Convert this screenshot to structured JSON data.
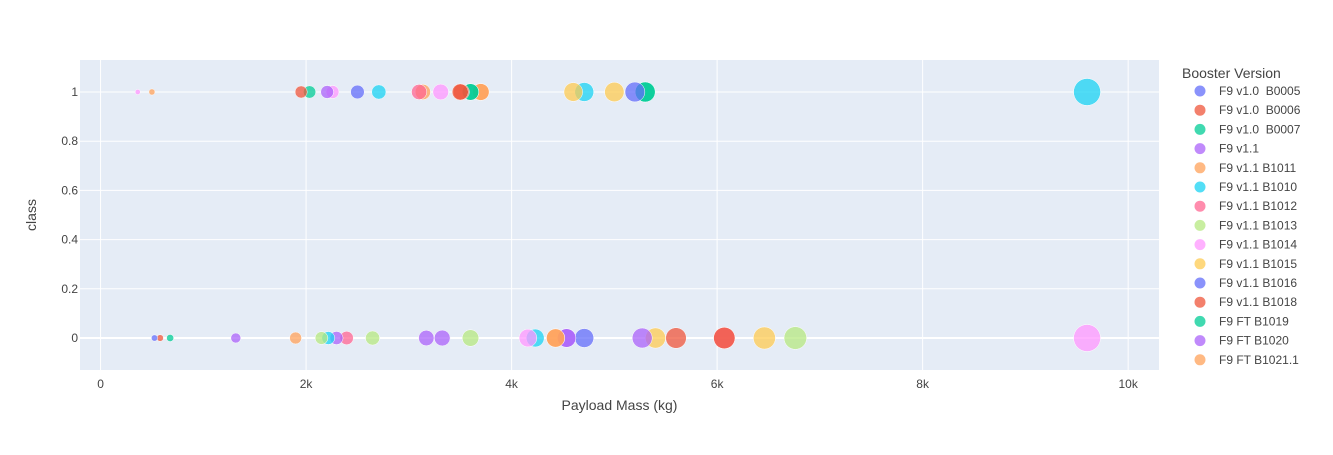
{
  "chart_data": {
    "type": "scatter",
    "title": "",
    "xlabel": "Payload Mass (kg)",
    "ylabel": "class",
    "xlim": [
      -200,
      10300
    ],
    "ylim": [
      -0.13,
      1.13
    ],
    "x_ticks": [
      0,
      2000,
      4000,
      6000,
      8000,
      10000
    ],
    "x_tick_labels": [
      "0",
      "2k",
      "4k",
      "6k",
      "8k",
      "10k"
    ],
    "y_ticks": [
      0,
      0.2,
      0.4,
      0.6,
      0.8,
      1
    ],
    "y_tick_labels": [
      "0",
      "0.2",
      "0.4",
      "0.6",
      "0.8",
      "1"
    ],
    "marker_size_encodes": "Payload Mass (kg)",
    "grid": true,
    "legend_title": "Booster Version",
    "legend_position": "right",
    "colors": {
      "plot_bg": "#E5ECF6",
      "grid": "#ffffff",
      "text": "#444444"
    },
    "series": [
      {
        "name": "F9 v1.0  B0005",
        "color": "#636EFA",
        "x": [
          525
        ],
        "y": [
          0
        ]
      },
      {
        "name": "F9 v1.0  B0006",
        "color": "#EF553B",
        "x": [
          580,
          1952,
          3510
        ],
        "y": [
          0,
          1,
          1
        ]
      },
      {
        "name": "F9 v1.0  B0007",
        "color": "#00CC96",
        "x": [
          677,
          2034,
          3600,
          5300
        ],
        "y": [
          0,
          1,
          1,
          1
        ]
      },
      {
        "name": "F9 v1.1",
        "color": "#AB63FA",
        "x": [
          1316,
          2296,
          3170,
          3325,
          4535,
          5271
        ],
        "y": [
          0,
          0,
          0,
          0,
          0,
          0
        ]
      },
      {
        "name": "F9 v1.1 B1011",
        "color": "#FFA15A",
        "x": [
          500,
          1898,
          3136,
          3700,
          4428
        ],
        "y": [
          1,
          0,
          1,
          1,
          0
        ]
      },
      {
        "name": "F9 v1.1 B1010",
        "color": "#19D3F3",
        "x": [
          2216,
          2708,
          4230,
          4707,
          9600
        ],
        "y": [
          0,
          1,
          0,
          1,
          1
        ]
      },
      {
        "name": "F9 v1.1 B1012",
        "color": "#FF6692",
        "x": [
          2395,
          3100,
          6070
        ],
        "y": [
          0,
          1,
          0
        ]
      },
      {
        "name": "F9 v1.1 B1013",
        "color": "#B6E880",
        "x": [
          2150,
          2647,
          3600,
          6761
        ],
        "y": [
          0,
          0,
          0,
          0
        ]
      },
      {
        "name": "F9 v1.1 B1014",
        "color": "#FF97FF",
        "x": [
          362,
          2257,
          3310,
          4159,
          9600
        ],
        "y": [
          1,
          1,
          1,
          0,
          0
        ]
      },
      {
        "name": "F9 v1.1 B1015",
        "color": "#FECB52",
        "x": [
          4600,
          5000,
          5400,
          6460
        ],
        "y": [
          1,
          1,
          0,
          0
        ]
      },
      {
        "name": "F9 v1.1 B1016",
        "color": "#636EFA",
        "x": [
          2500,
          4707,
          5200
        ],
        "y": [
          1,
          0,
          1
        ]
      },
      {
        "name": "F9 v1.1 B1018",
        "color": "#EF553B",
        "x": [
          3500,
          5600,
          6070
        ],
        "y": [
          1,
          0,
          0
        ]
      },
      {
        "name": "F9 FT B1019",
        "color": "#00CC96",
        "x": [
          3600,
          5300
        ],
        "y": [
          1,
          1
        ]
      },
      {
        "name": "F9 FT B1020",
        "color": "#AB63FA",
        "x": [
          2205,
          4535
        ],
        "y": [
          1,
          0
        ]
      },
      {
        "name": "F9 FT B1021.1",
        "color": "#FFA15A",
        "x": [
          3700,
          4428
        ],
        "y": [
          1,
          0
        ]
      }
    ]
  }
}
